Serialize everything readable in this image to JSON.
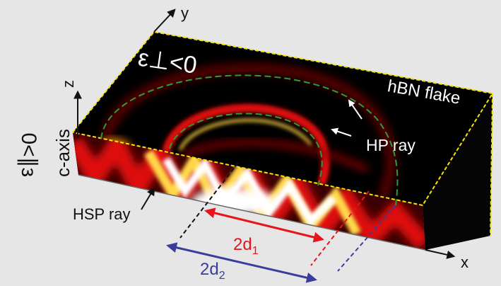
{
  "labels": {
    "y_axis": "y",
    "z_axis": "z",
    "x_axis": "x",
    "eps_perp": "ε⊥<0",
    "eps_par": "ε∥>0",
    "c_axis": "c-axis",
    "material": "hBN flake",
    "hp_ray": "HP ray",
    "hsp_ray": "HSP ray",
    "d1_prefix": "2d",
    "d1_sub": "1",
    "d2_prefix": "2d",
    "d2_sub": "2"
  },
  "colors": {
    "background": "#e6e6e6",
    "slab": "#000000",
    "edge_dash": "#f5e400",
    "hp_dash": "#2f9a3c",
    "d1": "#e8141c",
    "d2": "#3a3d9e",
    "text_on_dark": "#ffffff",
    "text_on_light": "#111111"
  }
}
